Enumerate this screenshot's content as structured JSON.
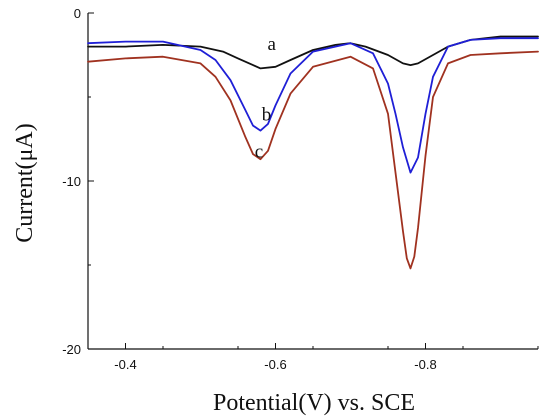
{
  "chart_data": {
    "type": "line",
    "xlabel": "Potential(V) vs. SCE",
    "ylabel": "Current(μA)",
    "xlim": [
      -0.35,
      -0.95
    ],
    "ylim": [
      -20,
      0
    ],
    "x_ticks": [
      -0.4,
      -0.6,
      -0.8
    ],
    "x_tick_labels": [
      "-0.4",
      "-0.6",
      "-0.8"
    ],
    "y_ticks": [
      0,
      -10,
      -20
    ],
    "y_tick_labels": [
      "0",
      "-10",
      "-20"
    ],
    "grid": false,
    "series": [
      {
        "name": "a",
        "color": "#111111",
        "x": [
          -0.35,
          -0.4,
          -0.45,
          -0.5,
          -0.53,
          -0.55,
          -0.57,
          -0.58,
          -0.6,
          -0.62,
          -0.65,
          -0.68,
          -0.7,
          -0.72,
          -0.75,
          -0.77,
          -0.78,
          -0.79,
          -0.81,
          -0.83,
          -0.86,
          -0.9,
          -0.95
        ],
        "y": [
          -2.0,
          -2.0,
          -1.9,
          -2.0,
          -2.3,
          -2.7,
          -3.1,
          -3.3,
          -3.2,
          -2.8,
          -2.2,
          -1.9,
          -1.8,
          -2.0,
          -2.5,
          -3.0,
          -3.1,
          -3.0,
          -2.5,
          -2.0,
          -1.6,
          -1.4,
          -1.4
        ]
      },
      {
        "name": "b",
        "color": "#1f1fd6",
        "x": [
          -0.35,
          -0.4,
          -0.45,
          -0.5,
          -0.52,
          -0.54,
          -0.56,
          -0.57,
          -0.58,
          -0.59,
          -0.6,
          -0.62,
          -0.65,
          -0.7,
          -0.73,
          -0.75,
          -0.76,
          -0.77,
          -0.78,
          -0.79,
          -0.8,
          -0.81,
          -0.83,
          -0.86,
          -0.9,
          -0.95
        ],
        "y": [
          -1.8,
          -1.7,
          -1.7,
          -2.2,
          -2.8,
          -4.0,
          -5.8,
          -6.7,
          -7.0,
          -6.6,
          -5.5,
          -3.6,
          -2.3,
          -1.8,
          -2.4,
          -4.2,
          -6.0,
          -8.0,
          -9.5,
          -8.6,
          -6.0,
          -3.8,
          -2.0,
          -1.6,
          -1.5,
          -1.5
        ]
      },
      {
        "name": "c",
        "color": "#a03220",
        "x": [
          -0.35,
          -0.4,
          -0.45,
          -0.5,
          -0.52,
          -0.54,
          -0.56,
          -0.57,
          -0.58,
          -0.59,
          -0.6,
          -0.62,
          -0.65,
          -0.7,
          -0.73,
          -0.75,
          -0.76,
          -0.77,
          -0.775,
          -0.78,
          -0.785,
          -0.79,
          -0.8,
          -0.81,
          -0.83,
          -0.86,
          -0.9,
          -0.95
        ],
        "y": [
          -2.9,
          -2.7,
          -2.6,
          -3.0,
          -3.8,
          -5.2,
          -7.4,
          -8.4,
          -8.7,
          -8.2,
          -6.9,
          -4.8,
          -3.2,
          -2.6,
          -3.3,
          -6.0,
          -9.5,
          -13.0,
          -14.6,
          -15.2,
          -14.5,
          -12.8,
          -8.5,
          -5.0,
          -3.0,
          -2.5,
          -2.4,
          -2.3
        ]
      }
    ],
    "annotations": [
      {
        "text": "a",
        "x": -0.595,
        "y": -2.2
      },
      {
        "text": "b",
        "x": -0.588,
        "y": -6.4
      },
      {
        "text": "c",
        "x": -0.578,
        "y": -8.6
      }
    ]
  }
}
